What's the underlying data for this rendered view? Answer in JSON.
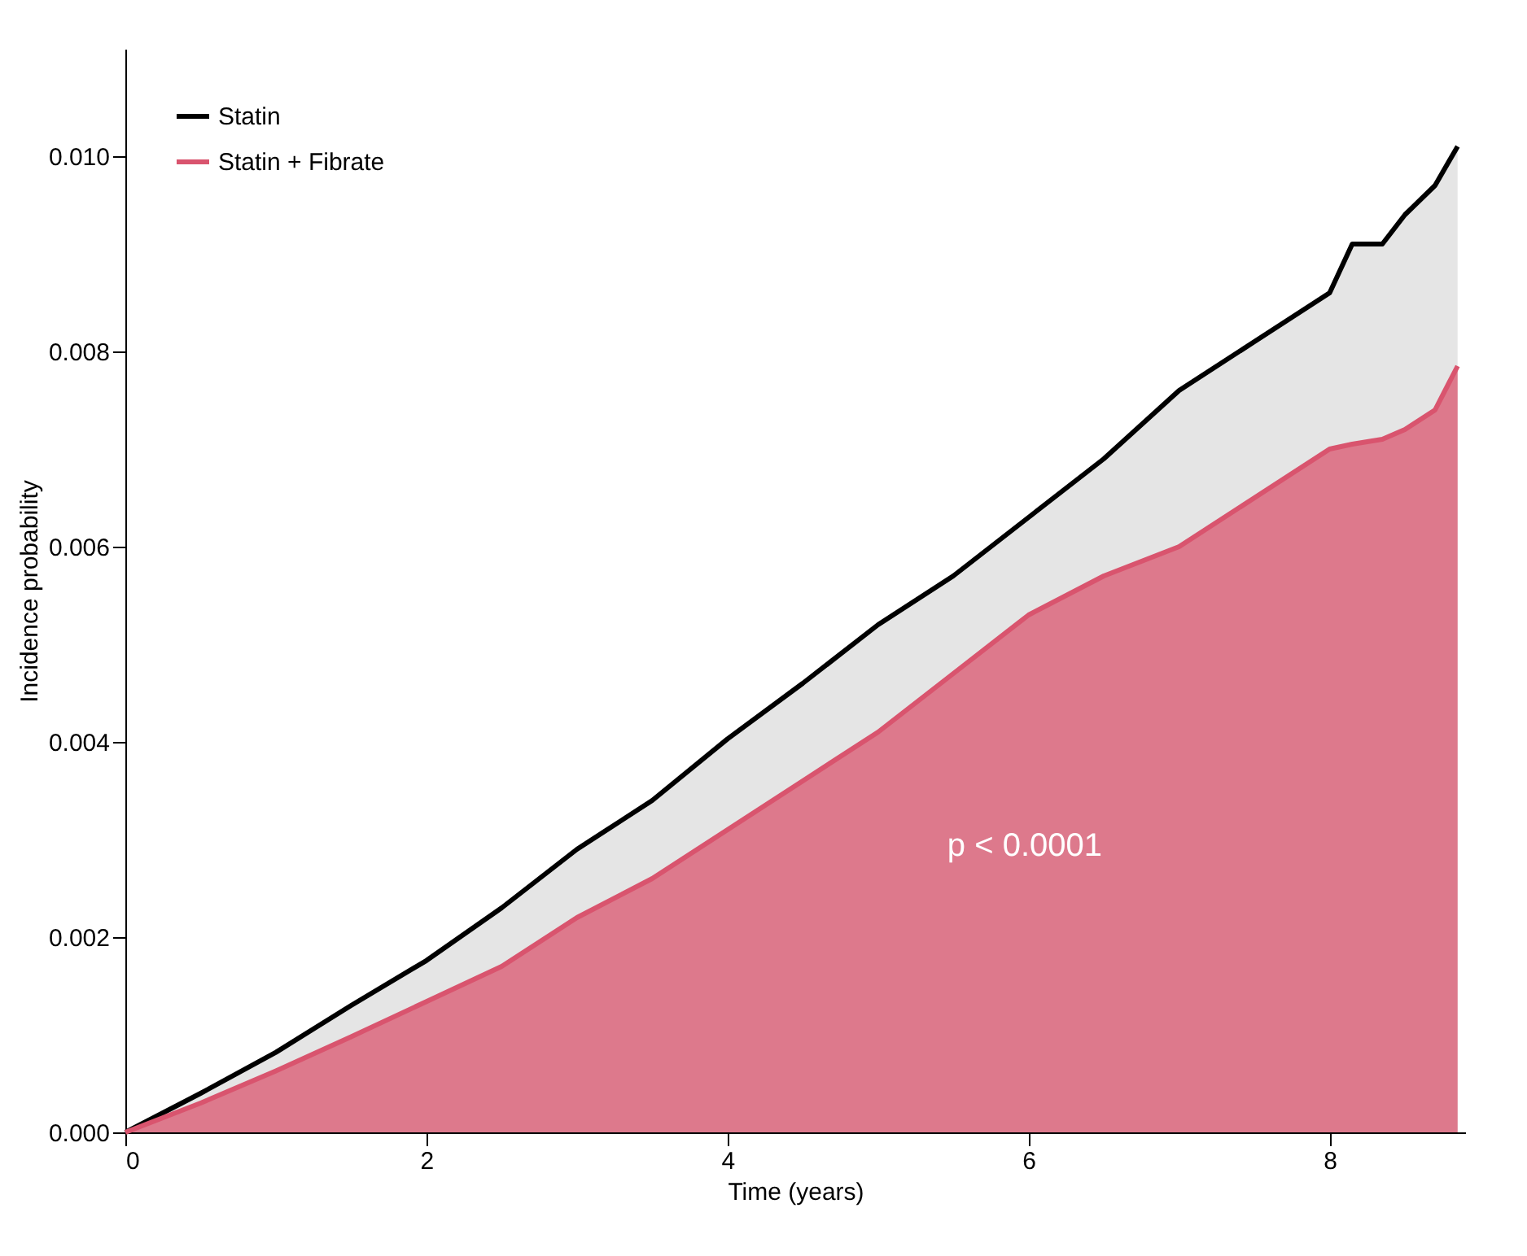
{
  "chart_data": {
    "type": "area",
    "xlabel": "Time (years)",
    "ylabel": "Incidence probability",
    "xlim": [
      0,
      8.9
    ],
    "ylim": [
      0,
      0.0111
    ],
    "xticks": [
      {
        "value": 0,
        "label": "0"
      },
      {
        "value": 2,
        "label": "2"
      },
      {
        "value": 4,
        "label": "4"
      },
      {
        "value": 6,
        "label": "6"
      },
      {
        "value": 8,
        "label": "8"
      }
    ],
    "x": [
      0,
      0.5,
      1,
      1.5,
      2,
      2.5,
      3,
      3.5,
      4,
      4.5,
      5,
      5.5,
      6,
      6.5,
      7,
      7.5,
      8,
      8.15,
      8.35,
      8.5,
      8.7,
      8.85
    ],
    "yticks": [
      {
        "value": 0,
        "label": "0.000"
      },
      {
        "value": 0.002,
        "label": "0.002"
      },
      {
        "value": 0.004,
        "label": "0.004"
      },
      {
        "value": 0.006,
        "label": "0.006"
      },
      {
        "value": 0.008,
        "label": "0.008"
      },
      {
        "value": 0.01,
        "label": "0.010"
      }
    ],
    "grid": false,
    "legend": "top left",
    "line_style": "solid",
    "marker": "none",
    "annotations": [
      "p < 0.0001"
    ],
    "series": [
      {
        "name": "Statin",
        "color": "#000000",
        "values": [
          0,
          0.0004,
          0.00082,
          0.0013,
          0.00176,
          0.0023,
          0.0029,
          0.0034,
          0.00403,
          0.0046,
          0.0052,
          0.0057,
          0.0063,
          0.0069,
          0.0076,
          0.0081,
          0.0086,
          0.0091,
          0.0091,
          0.0094,
          0.0097,
          0.0101
        ]
      },
      {
        "name": "Statin + Fibrate",
        "color": "#d9546e",
        "values": [
          0,
          0.0003,
          0.00063,
          0.00098,
          0.00134,
          0.0017,
          0.0022,
          0.0026,
          0.0031,
          0.0036,
          0.0041,
          0.0047,
          0.0053,
          0.0057,
          0.006,
          0.0065,
          0.007,
          0.00705,
          0.0071,
          0.0072,
          0.0074,
          0.00785
        ]
      }
    ]
  }
}
